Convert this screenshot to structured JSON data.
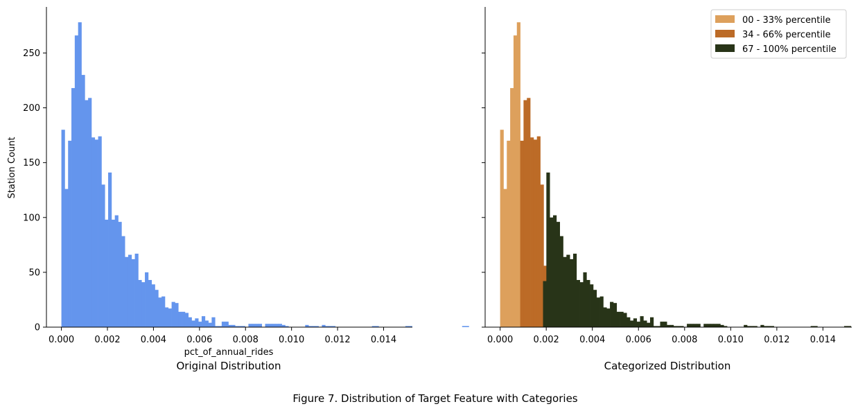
{
  "caption": "Figure 7. Distribution of Target Feature with Categories",
  "colors": {
    "original": "#6495ED",
    "cat_low": "#DDA05C",
    "cat_mid": "#BC6B27",
    "cat_high": "#283418"
  },
  "chart_data": [
    {
      "type": "bar",
      "panel_title": "Original Distribution",
      "xlabel": "pct_of_annual_rides",
      "ylabel": "Station Count",
      "xlim": [
        -0.00065,
        0.01525
      ],
      "ylim": [
        0,
        292
      ],
      "xticks": [
        0.0,
        0.002,
        0.004,
        0.006,
        0.008,
        0.01,
        0.012,
        0.014
      ],
      "xtick_labels": [
        "0.000",
        "0.002",
        "0.004",
        "0.006",
        "0.008",
        "0.010",
        "0.012",
        "0.014"
      ],
      "yticks": [
        0,
        50,
        100,
        150,
        200,
        250
      ],
      "ytick_labels": [
        "0",
        "50",
        "100",
        "150",
        "200",
        "250"
      ],
      "bin_start": 0.0,
      "bin_width": 0.0001451,
      "values": [
        180,
        126,
        170,
        218,
        266,
        278,
        230,
        207,
        209,
        173,
        171,
        174,
        130,
        98,
        141,
        98,
        102,
        96,
        83,
        64,
        66,
        62,
        67,
        43,
        41,
        50,
        43,
        39,
        34,
        27,
        28,
        18,
        17,
        23,
        22,
        14,
        14,
        13,
        9,
        6,
        8,
        5,
        10,
        6,
        4,
        9,
        1,
        1,
        5,
        5,
        2,
        2,
        1,
        1,
        1,
        0,
        3,
        3,
        3,
        3,
        0,
        3,
        3,
        3,
        3,
        3,
        2,
        1,
        0,
        0,
        0,
        0,
        0,
        2,
        1,
        1,
        1,
        0,
        2,
        1,
        1,
        1,
        0,
        0,
        0,
        0,
        0,
        0,
        0,
        0,
        0,
        0,
        0,
        1,
        1,
        0,
        0,
        0,
        0,
        0,
        0,
        0,
        0,
        1,
        1,
        0,
        0,
        0,
        0,
        0,
        0,
        0,
        0,
        0,
        0,
        0,
        0,
        0,
        0,
        0,
        1,
        1
      ],
      "grid": false
    },
    {
      "type": "bar",
      "panel_title": "Categorized Distribution",
      "xlim": [
        -0.00065,
        0.01525
      ],
      "ylim": [
        0,
        292
      ],
      "xticks": [
        0.0,
        0.002,
        0.004,
        0.006,
        0.008,
        0.01,
        0.012,
        0.014
      ],
      "xtick_labels": [
        "0.000",
        "0.002",
        "0.004",
        "0.006",
        "0.008",
        "0.010",
        "0.012",
        "0.014"
      ],
      "yticks": [
        0,
        50,
        100,
        150,
        200,
        250
      ],
      "bin_start": 0.0,
      "bin_width": 0.0001451,
      "series": [
        {
          "name": "00 - 33% percentile",
          "color_key": "cat_low",
          "bin_start": 0.0,
          "values": [
            180,
            126,
            170,
            218,
            266,
            278
          ]
        },
        {
          "name": "34 - 66% percentile",
          "color_key": "cat_mid",
          "bin_start": 0.00087,
          "values": [
            170,
            207,
            209,
            173,
            171,
            174,
            130,
            56
          ]
        },
        {
          "name": "67 - 100% percentile",
          "color_key": "cat_high",
          "bin_start": 0.00186,
          "values": [
            42,
            141,
            100,
            102,
            96,
            83,
            64,
            66,
            62,
            67,
            43,
            41,
            50,
            43,
            39,
            34,
            27,
            28,
            18,
            17,
            23,
            22,
            14,
            14,
            13,
            9,
            6,
            8,
            5,
            10,
            6,
            4,
            9,
            1,
            1,
            5,
            5,
            2,
            2,
            1,
            1,
            1,
            0,
            3,
            3,
            3,
            3,
            0,
            3,
            3,
            3,
            3,
            3,
            2,
            1,
            0,
            0,
            0,
            0,
            0,
            2,
            1,
            1,
            1,
            0,
            2,
            1,
            1,
            1,
            0,
            0,
            0,
            0,
            0,
            0,
            0,
            0,
            0,
            0,
            0,
            1,
            1,
            0,
            0,
            0,
            0,
            0,
            0,
            0,
            0,
            1,
            1,
            0,
            0,
            0,
            0,
            0,
            0,
            0,
            0,
            0,
            0,
            0,
            0,
            0,
            0,
            0,
            1,
            1
          ]
        }
      ],
      "legend_position": "upper right",
      "grid": false
    }
  ]
}
